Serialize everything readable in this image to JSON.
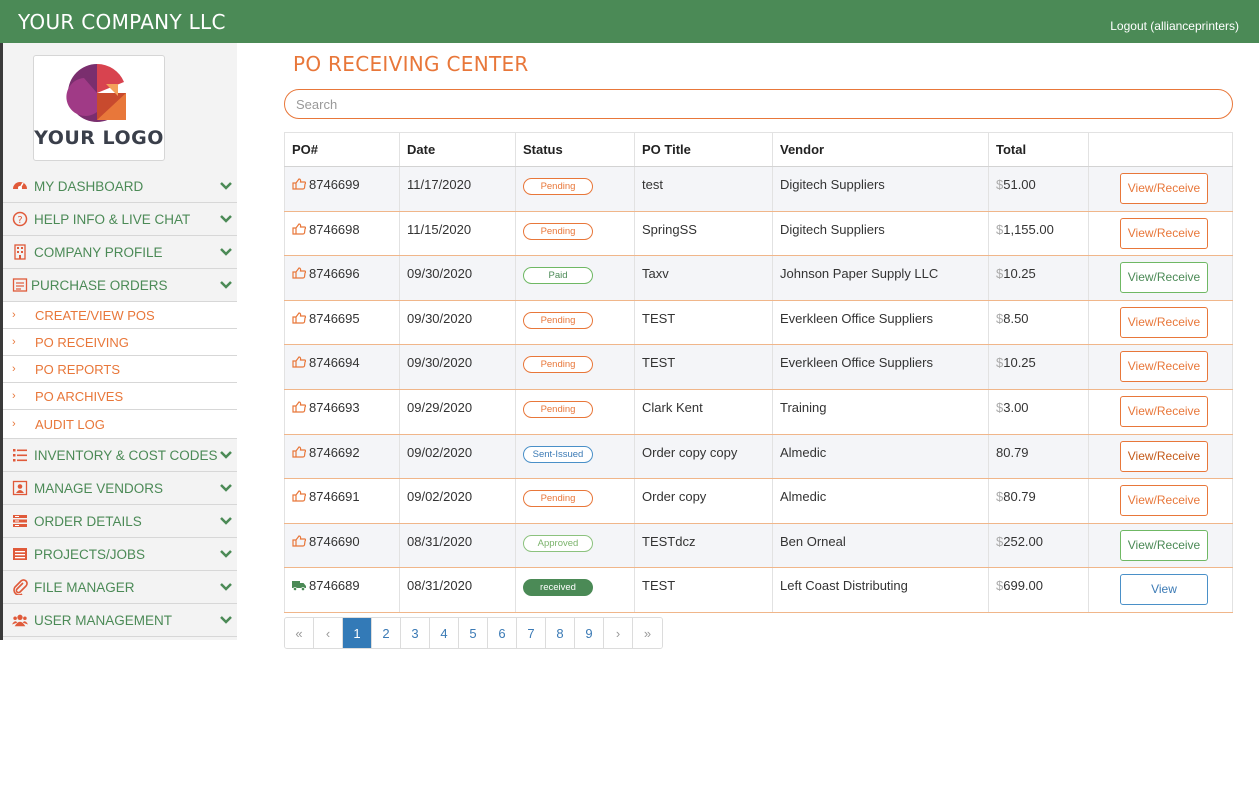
{
  "header": {
    "brand": "YOUR COMPANY LLC",
    "logout": "Logout (allianceprinters)"
  },
  "sidebar": {
    "logo_text": "YOUR LOGO",
    "items": [
      {
        "label": "MY DASHBOARD",
        "icon": "dashboard-icon"
      },
      {
        "label": "HELP INFO & LIVE CHAT",
        "icon": "help-icon"
      },
      {
        "label": "COMPANY PROFILE",
        "icon": "building-icon"
      },
      {
        "label": "PURCHASE ORDERS",
        "icon": "purchase-orders-icon"
      }
    ],
    "sub_items": [
      {
        "label": "CREATE/VIEW POS"
      },
      {
        "label": "PO RECEIVING"
      },
      {
        "label": "PO REPORTS"
      },
      {
        "label": "PO ARCHIVES"
      },
      {
        "label": "AUDIT LOG"
      }
    ],
    "items_after": [
      {
        "label": "INVENTORY & COST CODES",
        "icon": "list-icon"
      },
      {
        "label": "MANAGE VENDORS",
        "icon": "vendor-icon"
      },
      {
        "label": "ORDER DETAILS",
        "icon": "order-details-icon"
      },
      {
        "label": "PROJECTS/JOBS",
        "icon": "projects-icon"
      },
      {
        "label": "FILE MANAGER",
        "icon": "paperclip-icon"
      },
      {
        "label": "USER MANAGEMENT",
        "icon": "users-icon"
      }
    ]
  },
  "main": {
    "title": "PO RECEIVING CENTER",
    "search_placeholder": "Search",
    "columns": [
      "PO#",
      "Date",
      "Status",
      "PO Title",
      "Vendor",
      "Total",
      ""
    ],
    "rows": [
      {
        "po": "8746699",
        "date": "11/17/2020",
        "status": "Pending",
        "title": "test",
        "vendor": "Digitech Suppliers",
        "dollar": "$",
        "total": "51.00",
        "action": "View/Receive",
        "icon": "thumbs-up-icon"
      },
      {
        "po": "8746698",
        "date": "11/15/2020",
        "status": "Pending",
        "title": "SpringSS",
        "vendor": "Digitech Suppliers",
        "dollar": "$",
        "total": "1,155.00",
        "action": "View/Receive",
        "icon": "thumbs-up-icon"
      },
      {
        "po": "8746696",
        "date": "09/30/2020",
        "status": "Paid",
        "title": "Taxv",
        "vendor": "Johnson Paper Supply LLC",
        "dollar": "$",
        "total": "10.25",
        "action": "View/Receive",
        "icon": "thumbs-up-icon"
      },
      {
        "po": "8746695",
        "date": "09/30/2020",
        "status": "Pending",
        "title": "TEST",
        "vendor": "Everkleen Office Suppliers",
        "dollar": "$",
        "total": "8.50",
        "action": "View/Receive",
        "icon": "thumbs-up-icon"
      },
      {
        "po": "8746694",
        "date": "09/30/2020",
        "status": "Pending",
        "title": "TEST",
        "vendor": "Everkleen Office Suppliers",
        "dollar": "$",
        "total": "10.25",
        "action": "View/Receive",
        "icon": "thumbs-up-icon"
      },
      {
        "po": "8746693",
        "date": "09/29/2020",
        "status": "Pending",
        "title": "Clark Kent",
        "vendor": "Training",
        "dollar": "$",
        "total": "3.00",
        "action": "View/Receive",
        "icon": "thumbs-up-icon"
      },
      {
        "po": "8746692",
        "date": "09/02/2020",
        "status": "Sent-Issued",
        "title": "Order copy copy",
        "vendor": "Almedic",
        "dollar": "",
        "total": "80.79",
        "action": "View/Receive",
        "icon": "thumbs-up-icon"
      },
      {
        "po": "8746691",
        "date": "09/02/2020",
        "status": "Pending",
        "title": "Order copy",
        "vendor": "Almedic",
        "dollar": "$",
        "total": "80.79",
        "action": "View/Receive",
        "icon": "thumbs-up-icon"
      },
      {
        "po": "8746690",
        "date": "08/31/2020",
        "status": "Approved",
        "title": "TESTdcz",
        "vendor": "Ben Orneal",
        "dollar": "$",
        "total": "252.00",
        "action": "View/Receive",
        "icon": "thumbs-up-icon"
      },
      {
        "po": "8746689",
        "date": "08/31/2020",
        "status": "received",
        "title": "TEST",
        "vendor": "Left Coast Distributing",
        "dollar": "$",
        "total": "699.00",
        "action": "View",
        "icon": "truck-icon"
      }
    ],
    "pagination": [
      "«",
      "‹",
      "1",
      "2",
      "3",
      "4",
      "5",
      "6",
      "7",
      "8",
      "9",
      "›",
      "»"
    ],
    "active_page": "1"
  },
  "colors": {
    "green": "#4b8a56",
    "orange": "#e8773a",
    "blue": "#337ab7"
  }
}
